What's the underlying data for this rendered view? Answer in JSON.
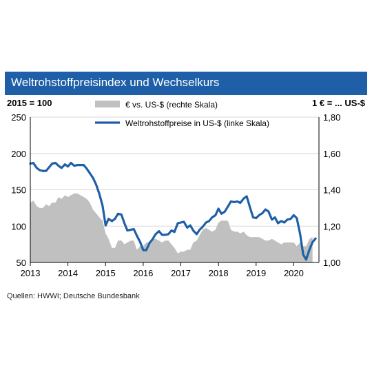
{
  "header": {
    "title": "Weltrohstoffpreisindex und Wechselkurs",
    "left_unit": "2015 = 100",
    "right_unit": "1 € = ... US-$"
  },
  "footer": {
    "source": "Quellen: HWWI; Deutsche Bundesbank"
  },
  "colors": {
    "title_bar": "#1f5fa8",
    "commodity_line": "#1f5fa8",
    "fx_area": "#c0c0c0"
  },
  "chart_data": {
    "type": "line",
    "title": "Weltrohstoffpreisindex und Wechselkurs",
    "legend_position": "top-center",
    "grid": "horizontal",
    "x_range": [
      2013.0,
      2020.67
    ],
    "x_tick_labels": [
      "2013",
      "2014",
      "2015",
      "2016",
      "2017",
      "2018",
      "2019",
      "2020"
    ],
    "y_left": {
      "range": [
        50,
        250
      ],
      "ticks": [
        "50",
        "100",
        "150",
        "200",
        "250"
      ]
    },
    "y_right": {
      "range": [
        1.0,
        1.8
      ],
      "ticks": [
        "1,00",
        "1,20",
        "1,40",
        "1,60",
        "1,80"
      ]
    },
    "series": [
      {
        "name": "€ vs. US-$ (rechte Skala)",
        "type": "area",
        "axis": "right",
        "color": "#c0c0c0",
        "points": [
          [
            2013.0,
            1.33
          ],
          [
            2013.08,
            1.34
          ],
          [
            2013.17,
            1.31
          ],
          [
            2013.25,
            1.3
          ],
          [
            2013.33,
            1.3
          ],
          [
            2013.42,
            1.32
          ],
          [
            2013.5,
            1.31
          ],
          [
            2013.58,
            1.33
          ],
          [
            2013.67,
            1.33
          ],
          [
            2013.75,
            1.36
          ],
          [
            2013.83,
            1.35
          ],
          [
            2013.92,
            1.37
          ],
          [
            2014.0,
            1.36
          ],
          [
            2014.08,
            1.37
          ],
          [
            2014.17,
            1.38
          ],
          [
            2014.25,
            1.38
          ],
          [
            2014.33,
            1.37
          ],
          [
            2014.42,
            1.36
          ],
          [
            2014.5,
            1.35
          ],
          [
            2014.58,
            1.33
          ],
          [
            2014.67,
            1.29
          ],
          [
            2014.75,
            1.27
          ],
          [
            2014.83,
            1.25
          ],
          [
            2014.92,
            1.23
          ],
          [
            2015.0,
            1.16
          ],
          [
            2015.08,
            1.13
          ],
          [
            2015.17,
            1.08
          ],
          [
            2015.25,
            1.08
          ],
          [
            2015.33,
            1.12
          ],
          [
            2015.42,
            1.12
          ],
          [
            2015.5,
            1.1
          ],
          [
            2015.58,
            1.11
          ],
          [
            2015.67,
            1.12
          ],
          [
            2015.75,
            1.12
          ],
          [
            2015.83,
            1.07
          ],
          [
            2015.92,
            1.09
          ],
          [
            2016.0,
            1.09
          ],
          [
            2016.08,
            1.11
          ],
          [
            2016.17,
            1.11
          ],
          [
            2016.25,
            1.13
          ],
          [
            2016.33,
            1.13
          ],
          [
            2016.42,
            1.12
          ],
          [
            2016.5,
            1.11
          ],
          [
            2016.58,
            1.12
          ],
          [
            2016.67,
            1.12
          ],
          [
            2016.75,
            1.1
          ],
          [
            2016.83,
            1.08
          ],
          [
            2016.92,
            1.05
          ],
          [
            2017.0,
            1.06
          ],
          [
            2017.08,
            1.06
          ],
          [
            2017.17,
            1.07
          ],
          [
            2017.25,
            1.07
          ],
          [
            2017.33,
            1.11
          ],
          [
            2017.42,
            1.12
          ],
          [
            2017.5,
            1.15
          ],
          [
            2017.58,
            1.18
          ],
          [
            2017.67,
            1.19
          ],
          [
            2017.75,
            1.18
          ],
          [
            2017.83,
            1.17
          ],
          [
            2017.92,
            1.18
          ],
          [
            2018.0,
            1.22
          ],
          [
            2018.08,
            1.23
          ],
          [
            2018.17,
            1.23
          ],
          [
            2018.25,
            1.23
          ],
          [
            2018.33,
            1.18
          ],
          [
            2018.42,
            1.17
          ],
          [
            2018.5,
            1.17
          ],
          [
            2018.58,
            1.16
          ],
          [
            2018.67,
            1.17
          ],
          [
            2018.75,
            1.15
          ],
          [
            2018.83,
            1.14
          ],
          [
            2018.92,
            1.14
          ],
          [
            2019.0,
            1.14
          ],
          [
            2019.08,
            1.14
          ],
          [
            2019.17,
            1.13
          ],
          [
            2019.25,
            1.12
          ],
          [
            2019.33,
            1.12
          ],
          [
            2019.42,
            1.13
          ],
          [
            2019.5,
            1.12
          ],
          [
            2019.58,
            1.11
          ],
          [
            2019.67,
            1.1
          ],
          [
            2019.75,
            1.11
          ],
          [
            2019.83,
            1.11
          ],
          [
            2019.92,
            1.11
          ],
          [
            2020.0,
            1.11
          ],
          [
            2020.08,
            1.09
          ],
          [
            2020.17,
            1.11
          ],
          [
            2020.25,
            1.09
          ],
          [
            2020.33,
            1.09
          ],
          [
            2020.42,
            1.13
          ],
          [
            2020.5,
            1.14
          ]
        ]
      },
      {
        "name": "Weltrohstoffpreise in US-$ (linke Skala)",
        "type": "line",
        "axis": "left",
        "color": "#1f5fa8",
        "points": [
          [
            2013.0,
            186
          ],
          [
            2013.08,
            187
          ],
          [
            2013.17,
            180
          ],
          [
            2013.25,
            177
          ],
          [
            2013.33,
            176
          ],
          [
            2013.42,
            176
          ],
          [
            2013.5,
            181
          ],
          [
            2013.58,
            186
          ],
          [
            2013.67,
            187
          ],
          [
            2013.75,
            183
          ],
          [
            2013.83,
            180
          ],
          [
            2013.92,
            185
          ],
          [
            2014.0,
            182
          ],
          [
            2014.08,
            187
          ],
          [
            2014.17,
            183
          ],
          [
            2014.25,
            184
          ],
          [
            2014.33,
            184
          ],
          [
            2014.42,
            184
          ],
          [
            2014.5,
            179
          ],
          [
            2014.58,
            173
          ],
          [
            2014.67,
            166
          ],
          [
            2014.75,
            157
          ],
          [
            2014.83,
            145
          ],
          [
            2014.92,
            128
          ],
          [
            2015.0,
            101
          ],
          [
            2015.08,
            110
          ],
          [
            2015.17,
            107
          ],
          [
            2015.25,
            110
          ],
          [
            2015.33,
            117
          ],
          [
            2015.42,
            116
          ],
          [
            2015.5,
            104
          ],
          [
            2015.58,
            94
          ],
          [
            2015.67,
            95
          ],
          [
            2015.75,
            96
          ],
          [
            2015.83,
            87
          ],
          [
            2015.92,
            78
          ],
          [
            2016.0,
            67
          ],
          [
            2016.08,
            67
          ],
          [
            2016.17,
            77
          ],
          [
            2016.25,
            82
          ],
          [
            2016.33,
            89
          ],
          [
            2016.42,
            93
          ],
          [
            2016.5,
            88
          ],
          [
            2016.58,
            88
          ],
          [
            2016.67,
            89
          ],
          [
            2016.75,
            94
          ],
          [
            2016.83,
            92
          ],
          [
            2016.92,
            104
          ],
          [
            2017.0,
            105
          ],
          [
            2017.08,
            106
          ],
          [
            2017.17,
            98
          ],
          [
            2017.25,
            101
          ],
          [
            2017.33,
            94
          ],
          [
            2017.42,
            89
          ],
          [
            2017.5,
            95
          ],
          [
            2017.58,
            99
          ],
          [
            2017.67,
            105
          ],
          [
            2017.75,
            107
          ],
          [
            2017.83,
            112
          ],
          [
            2017.92,
            115
          ],
          [
            2018.0,
            124
          ],
          [
            2018.08,
            117
          ],
          [
            2018.17,
            120
          ],
          [
            2018.25,
            127
          ],
          [
            2018.33,
            134
          ],
          [
            2018.42,
            133
          ],
          [
            2018.5,
            134
          ],
          [
            2018.58,
            132
          ],
          [
            2018.67,
            138
          ],
          [
            2018.75,
            141
          ],
          [
            2018.83,
            127
          ],
          [
            2018.92,
            112
          ],
          [
            2019.0,
            111
          ],
          [
            2019.08,
            115
          ],
          [
            2019.17,
            118
          ],
          [
            2019.25,
            123
          ],
          [
            2019.33,
            120
          ],
          [
            2019.42,
            109
          ],
          [
            2019.5,
            112
          ],
          [
            2019.58,
            104
          ],
          [
            2019.67,
            107
          ],
          [
            2019.75,
            105
          ],
          [
            2019.83,
            109
          ],
          [
            2019.92,
            110
          ],
          [
            2020.0,
            115
          ],
          [
            2020.08,
            111
          ],
          [
            2020.17,
            89
          ],
          [
            2020.25,
            61
          ],
          [
            2020.33,
            54
          ],
          [
            2020.42,
            68
          ],
          [
            2020.5,
            78
          ],
          [
            2020.58,
            83
          ]
        ]
      }
    ]
  }
}
